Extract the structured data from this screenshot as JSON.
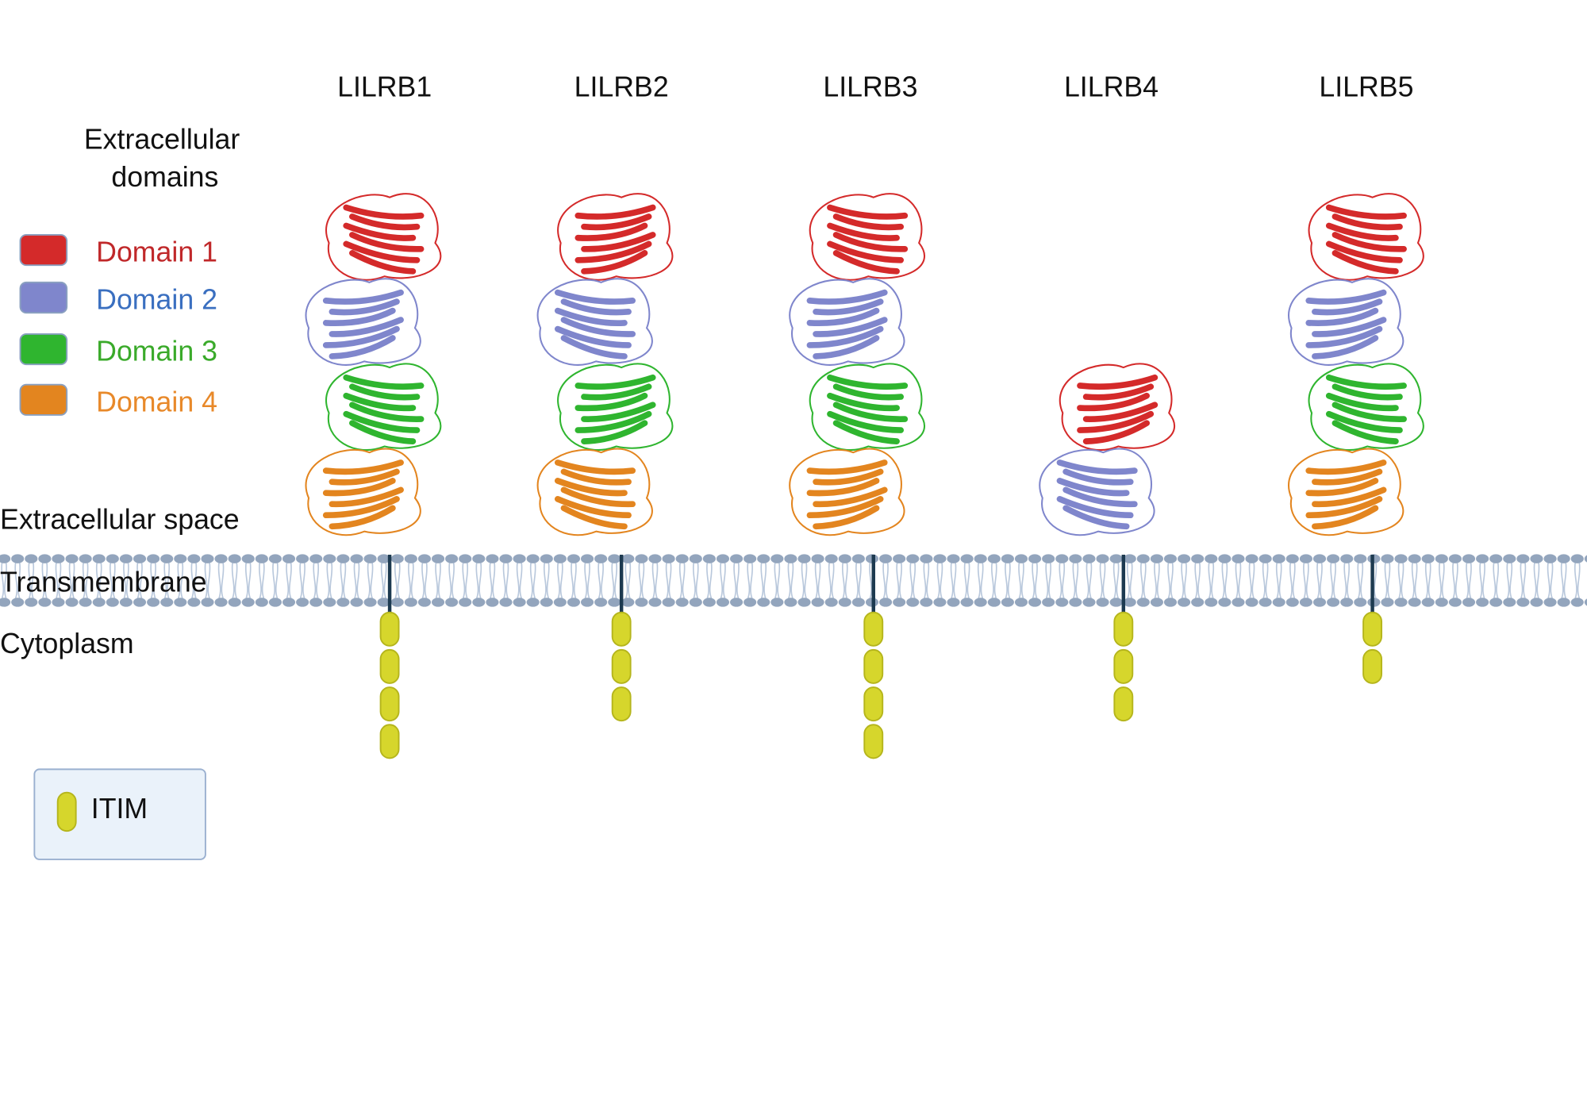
{
  "header": {
    "title": "Extracellular domains"
  },
  "domain_legend": {
    "items": [
      {
        "label": "Domain 1",
        "color": "#d42a2a",
        "text_color": "#c0282a"
      },
      {
        "label": "Domain 2",
        "color": "#7f86cc",
        "text_color": "#3a6fc0"
      },
      {
        "label": "Domain 3",
        "color": "#2fb52f",
        "text_color": "#3aaa2a"
      },
      {
        "label": "Domain 4",
        "color": "#e3851f",
        "text_color": "#e8892a"
      }
    ]
  },
  "regions": {
    "extracellular": "Extracellular space",
    "transmembrane": "Transmembrane",
    "cytoplasm": "Cytoplasm"
  },
  "receptors": [
    {
      "name": "LILRB1",
      "domains": 4,
      "itims": 4
    },
    {
      "name": "LILRB2",
      "domains": 4,
      "itims": 3
    },
    {
      "name": "LILRB3",
      "domains": 4,
      "itims": 4
    },
    {
      "name": "LILRB4",
      "domains": 2,
      "itims": 3
    },
    {
      "name": "LILRB5",
      "domains": 4,
      "itims": 2
    }
  ],
  "itim_legend": {
    "label": "ITIM",
    "color": "#d6d62c"
  }
}
